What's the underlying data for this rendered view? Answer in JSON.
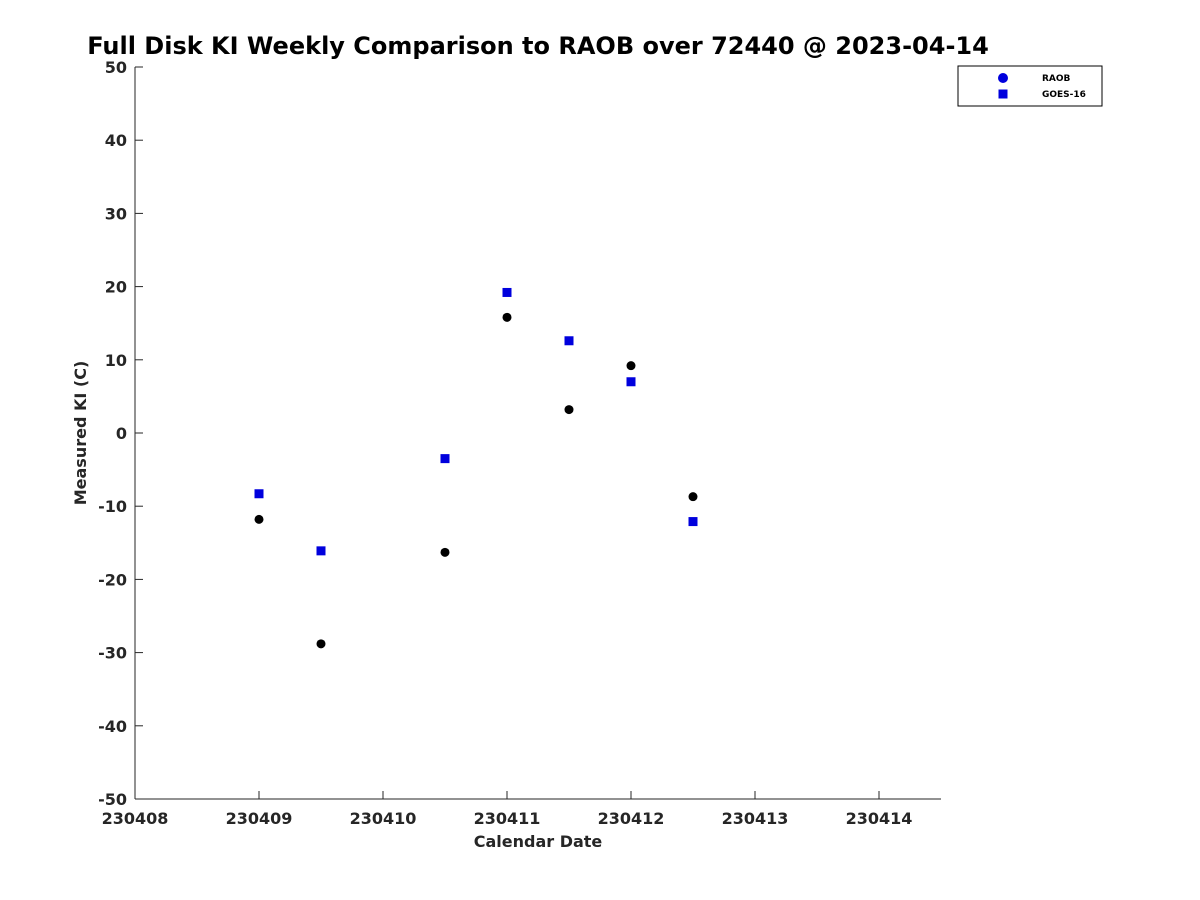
{
  "chart_data": {
    "type": "scatter",
    "title": "Full Disk KI Weekly Comparison to RAOB over 72440 @ 2023-04-14",
    "xlabel": "Calendar Date",
    "ylabel": "Measured KI (C)",
    "xlim": [
      230408,
      230414.5
    ],
    "ylim": [
      -50,
      50
    ],
    "xticks": [
      230408,
      230409,
      230410,
      230411,
      230412,
      230413,
      230414
    ],
    "xtick_labels": [
      "230408",
      "230409",
      "230410",
      "230411",
      "230412",
      "230413",
      "230414"
    ],
    "yticks": [
      -50,
      -40,
      -30,
      -20,
      -10,
      0,
      10,
      20,
      30,
      40,
      50
    ],
    "ytick_labels": [
      "-50",
      "-40",
      "-30",
      "-20",
      "-10",
      "0",
      "10",
      "20",
      "30",
      "40",
      "50"
    ],
    "grid": false,
    "legend_position": "top-right, outside plot area",
    "series": [
      {
        "name": "RAOB",
        "marker": "circle",
        "color": "#000000",
        "legend_color": "#0000dd",
        "x": [
          230409,
          230409.5,
          230410.5,
          230411,
          230411.5,
          230412,
          230412.5
        ],
        "y": [
          -11.8,
          -28.8,
          -16.3,
          15.8,
          3.2,
          9.2,
          -8.7
        ]
      },
      {
        "name": "GOES-16",
        "marker": "square",
        "color": "#0000dd",
        "legend_color": "#0000dd",
        "x": [
          230409,
          230409.5,
          230410.5,
          230411,
          230411.5,
          230412,
          230412.5
        ],
        "y": [
          -8.3,
          -16.1,
          -3.5,
          19.2,
          12.6,
          7.0,
          -12.1
        ]
      }
    ]
  }
}
